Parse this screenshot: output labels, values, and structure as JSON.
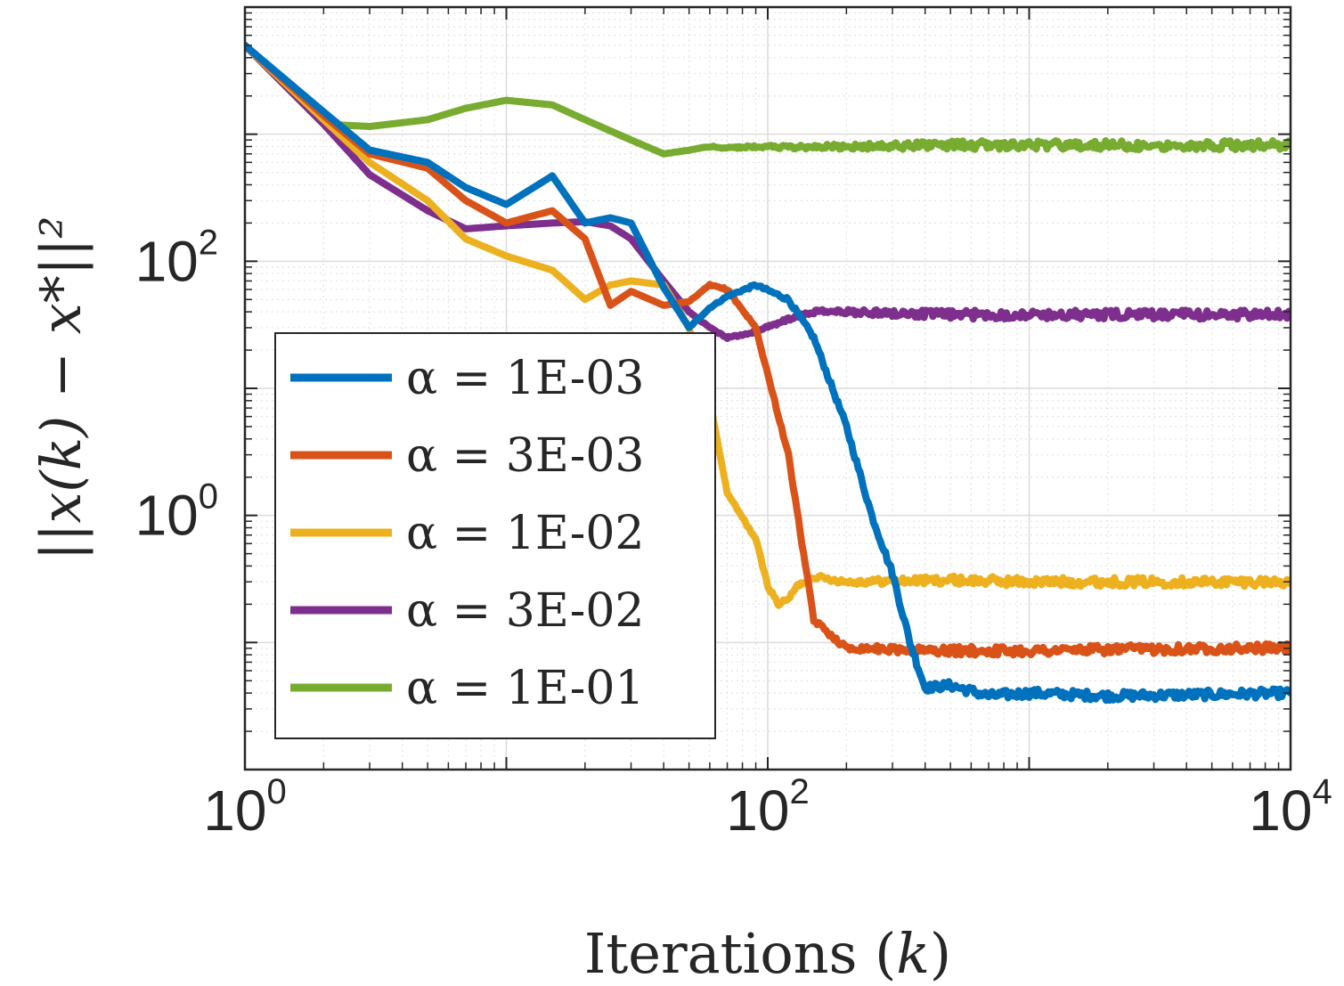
{
  "chart_data": {
    "type": "line",
    "scale": {
      "x": "log",
      "y": "log"
    },
    "xlabel_prefix": "Iterations (",
    "xlabel_var": "k",
    "xlabel_suffix": ")",
    "ylabel": "||x(k) − x*||²",
    "xlim": [
      1,
      10000
    ],
    "ylim": [
      0.01,
      10000
    ],
    "grid": true,
    "minor_grid": true,
    "legend_position": "left-center",
    "x_ticks": [
      {
        "base": "10",
        "exp": "0"
      },
      {
        "base": "10",
        "exp": "2"
      },
      {
        "base": "10",
        "exp": "4"
      }
    ],
    "y_ticks": [
      {
        "base": "10",
        "exp": "0"
      },
      {
        "base": "10",
        "exp": "2"
      }
    ],
    "series": [
      {
        "name": "α = 1E-03",
        "color": "#0072BD",
        "x": [
          1,
          2,
          3,
          5,
          7,
          10,
          15,
          20,
          25,
          30,
          40,
          50,
          60,
          70,
          90,
          120,
          150,
          200,
          250,
          300,
          350,
          400,
          500,
          700,
          1000,
          2000,
          5000,
          10000
        ],
        "y": [
          5000,
          1500,
          750,
          600,
          380,
          280,
          470,
          200,
          220,
          200,
          62,
          30,
          43,
          53,
          65,
          50,
          25,
          5,
          1.0,
          0.35,
          0.1,
          0.044,
          0.046,
          0.038,
          0.04,
          0.038,
          0.039,
          0.04
        ]
      },
      {
        "name": "α = 3E-03",
        "color": "#D95319",
        "x": [
          1,
          2,
          3,
          5,
          7,
          10,
          15,
          20,
          25,
          30,
          40,
          50,
          60,
          70,
          90,
          120,
          150,
          200,
          250,
          300,
          500,
          1000,
          2000,
          5000,
          10000
        ],
        "y": [
          5000,
          1400,
          700,
          540,
          300,
          200,
          250,
          150,
          45,
          58,
          45,
          48,
          65,
          60,
          30,
          3,
          0.15,
          0.09,
          0.09,
          0.088,
          0.086,
          0.086,
          0.088,
          0.09,
          0.09
        ]
      },
      {
        "name": "α = 1E-02",
        "color": "#EDB120",
        "x": [
          1,
          2,
          3,
          5,
          7,
          10,
          15,
          20,
          25,
          30,
          40,
          50,
          60,
          70,
          90,
          100,
          110,
          120,
          130,
          150,
          200,
          500,
          1000,
          10000
        ],
        "y": [
          5000,
          1300,
          600,
          300,
          150,
          110,
          85,
          50,
          65,
          70,
          65,
          30,
          8,
          1.5,
          0.65,
          0.28,
          0.2,
          0.22,
          0.28,
          0.33,
          0.3,
          0.31,
          0.3,
          0.3
        ]
      },
      {
        "name": "α = 3E-02",
        "color": "#7E2F8E",
        "x": [
          1,
          2,
          3,
          5,
          7,
          10,
          15,
          20,
          25,
          30,
          40,
          50,
          60,
          70,
          90,
          120,
          150,
          200,
          500,
          1000,
          10000
        ],
        "y": [
          5000,
          1200,
          480,
          250,
          180,
          190,
          200,
          205,
          190,
          150,
          70,
          40,
          30,
          25,
          28,
          35,
          40,
          40,
          38,
          38,
          38
        ]
      },
      {
        "name": "α = 1E-01",
        "color": "#77AC30",
        "x": [
          1,
          2,
          3,
          5,
          7,
          10,
          15,
          20,
          30,
          40,
          50,
          60,
          70,
          90,
          120,
          200,
          500,
          1000,
          10000
        ],
        "y": [
          5000,
          1200,
          1150,
          1300,
          1600,
          1850,
          1700,
          1300,
          900,
          700,
          750,
          800,
          780,
          800,
          790,
          800,
          820,
          820,
          820
        ]
      }
    ]
  }
}
